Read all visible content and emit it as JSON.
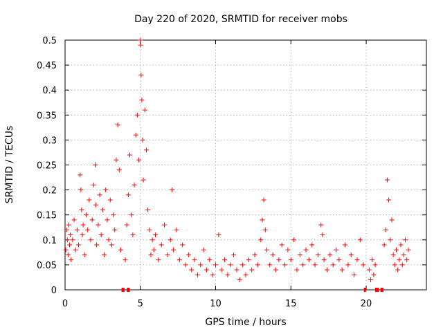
{
  "chart_data": {
    "type": "scatter",
    "title": "Day 220 of 2020, SRMTID for receiver mobs",
    "xlabel": "GPS time / hours",
    "ylabel": "SRMTID / TECUs",
    "xlim": [
      0,
      24
    ],
    "ylim": [
      0,
      0.5
    ],
    "grid": true,
    "x_ticks": [
      0,
      5,
      10,
      15,
      20
    ],
    "x_tick_labels": [
      "0",
      "5",
      "10",
      "15",
      "20"
    ],
    "y_ticks": [
      0,
      0.05,
      0.1,
      0.15,
      0.2,
      0.25,
      0.3,
      0.35,
      0.4,
      0.45,
      0.5
    ],
    "y_tick_labels": [
      "0",
      "0.05",
      "0.1",
      "0.15",
      "0.2",
      "0.25",
      "0.3",
      "0.35",
      "0.4",
      "0.45",
      "0.5"
    ],
    "marker": "+",
    "color": "#ff0000",
    "series": [
      {
        "name": "SRMTID",
        "x": [
          0.05,
          0.1,
          0.15,
          0.2,
          0.25,
          0.3,
          0.35,
          0.4,
          0.5,
          0.6,
          0.7,
          0.8,
          0.9,
          1.0,
          1.05,
          1.1,
          1.15,
          1.2,
          1.3,
          1.4,
          1.5,
          1.6,
          1.7,
          1.8,
          1.9,
          2.0,
          2.05,
          2.1,
          2.2,
          2.3,
          2.4,
          2.5,
          2.6,
          2.7,
          2.8,
          2.9,
          3.0,
          3.1,
          3.2,
          3.3,
          3.4,
          3.5,
          3.6,
          3.7,
          4.0,
          4.1,
          4.2,
          4.3,
          4.4,
          4.5,
          4.6,
          4.7,
          4.8,
          4.9,
          5.0,
          5.02,
          5.05,
          5.1,
          5.15,
          5.2,
          5.3,
          5.4,
          5.5,
          5.6,
          5.7,
          5.8,
          5.9,
          6.0,
          6.2,
          6.4,
          6.6,
          6.8,
          7.0,
          7.1,
          7.2,
          7.4,
          7.6,
          7.8,
          8.0,
          8.2,
          8.4,
          8.6,
          8.8,
          9.0,
          9.2,
          9.4,
          9.6,
          9.8,
          10.0,
          10.2,
          10.4,
          10.6,
          10.8,
          11.0,
          11.2,
          11.4,
          11.6,
          11.8,
          12.0,
          12.2,
          12.4,
          12.6,
          12.8,
          13.0,
          13.1,
          13.2,
          13.3,
          13.4,
          13.6,
          13.8,
          14.0,
          14.2,
          14.4,
          14.6,
          14.8,
          15.0,
          15.2,
          15.4,
          15.6,
          15.8,
          16.0,
          16.2,
          16.4,
          16.6,
          16.8,
          17.0,
          17.1,
          17.2,
          17.4,
          17.6,
          17.8,
          18.0,
          18.2,
          18.4,
          18.6,
          18.8,
          19.0,
          19.2,
          19.4,
          19.6,
          19.8,
          20.2,
          20.3,
          20.4,
          20.5,
          20.6,
          21.2,
          21.3,
          21.4,
          21.5,
          21.6,
          21.7,
          21.8,
          21.9,
          22.0,
          22.1,
          22.2,
          22.3,
          22.4,
          22.5,
          22.6,
          22.7,
          22.8
        ],
        "y": [
          0.08,
          0.12,
          0.1,
          0.07,
          0.13,
          0.09,
          0.11,
          0.06,
          0.1,
          0.14,
          0.08,
          0.12,
          0.09,
          0.23,
          0.2,
          0.16,
          0.11,
          0.13,
          0.07,
          0.15,
          0.12,
          0.18,
          0.1,
          0.14,
          0.21,
          0.25,
          0.17,
          0.09,
          0.13,
          0.19,
          0.11,
          0.16,
          0.07,
          0.2,
          0.14,
          0.1,
          0.18,
          0.09,
          0.15,
          0.12,
          0.26,
          0.33,
          0.24,
          0.08,
          0.06,
          0.13,
          0.19,
          0.27,
          0.15,
          0.11,
          0.21,
          0.31,
          0.35,
          0.26,
          0.5,
          0.49,
          0.43,
          0.38,
          0.3,
          0.22,
          0.36,
          0.28,
          0.16,
          0.12,
          0.07,
          0.1,
          0.08,
          0.11,
          0.06,
          0.09,
          0.13,
          0.07,
          0.1,
          0.2,
          0.08,
          0.12,
          0.06,
          0.09,
          0.05,
          0.07,
          0.04,
          0.06,
          0.03,
          0.05,
          0.08,
          0.04,
          0.06,
          0.03,
          0.05,
          0.11,
          0.04,
          0.06,
          0.03,
          0.05,
          0.07,
          0.04,
          0.02,
          0.05,
          0.03,
          0.06,
          0.04,
          0.07,
          0.05,
          0.1,
          0.14,
          0.18,
          0.12,
          0.08,
          0.05,
          0.07,
          0.04,
          0.06,
          0.09,
          0.05,
          0.08,
          0.06,
          0.1,
          0.04,
          0.07,
          0.05,
          0.08,
          0.06,
          0.09,
          0.05,
          0.07,
          0.13,
          0.11,
          0.06,
          0.04,
          0.07,
          0.05,
          0.08,
          0.06,
          0.04,
          0.09,
          0.05,
          0.07,
          0.03,
          0.06,
          0.1,
          0.05,
          0.04,
          0.02,
          0.06,
          0.03,
          0.05,
          0.09,
          0.12,
          0.22,
          0.18,
          0.1,
          0.14,
          0.07,
          0.05,
          0.08,
          0.04,
          0.06,
          0.09,
          0.05,
          0.07,
          0.1,
          0.06,
          0.08
        ]
      }
    ],
    "gap_markers": [
      {
        "x_start": 3.75,
        "x_end": 3.95
      },
      {
        "x_start": 4.1,
        "x_end": 4.3
      },
      {
        "x_start": 19.85,
        "x_end": 19.95
      },
      {
        "x_start": 20.6,
        "x_end": 20.85
      },
      {
        "x_start": 20.95,
        "x_end": 21.15
      }
    ]
  }
}
